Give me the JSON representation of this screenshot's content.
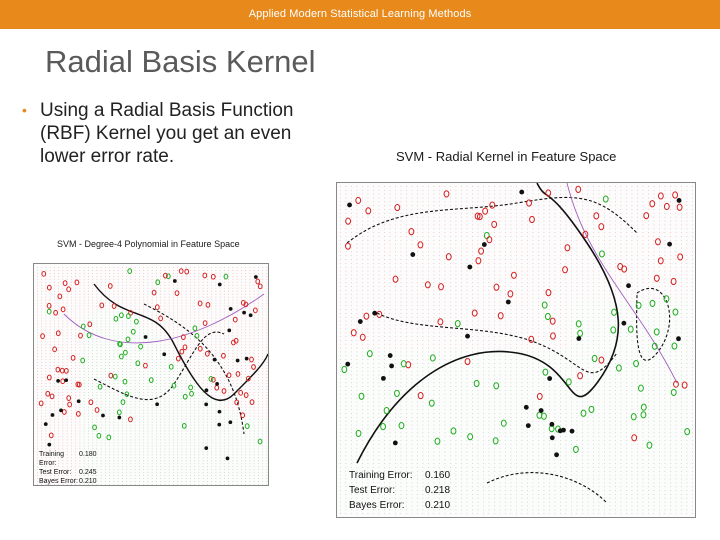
{
  "header": {
    "course_title": "Applied Modern Statistical Learning Methods"
  },
  "slide": {
    "title": "Radial Basis Kernel",
    "bullet": "Using a Radial Basis Function (RBF) Kernel you get an even lower error rate."
  },
  "figures": {
    "poly": {
      "title": "SVM - Degree-4 Polynomial in Feature Space",
      "errors": [
        {
          "label": "Training Error:",
          "value": "0.180"
        },
        {
          "label": "Test Error:",
          "value": "0.245"
        },
        {
          "label": "Bayes Error:",
          "value": "0.210"
        }
      ]
    },
    "rbf": {
      "title": "SVM - Radial Kernel in Feature Space",
      "errors": [
        {
          "label": "Training Error:",
          "value": "0.160"
        },
        {
          "label": "Test Error:",
          "value": "0.218"
        },
        {
          "label": "Bayes Error:",
          "value": "0.210"
        }
      ]
    }
  },
  "colors": {
    "header": "#e8891c",
    "class_red": "#d62020",
    "class_green": "#1fae1f",
    "boundary": "#111111",
    "bayes": "#a060c0"
  }
}
